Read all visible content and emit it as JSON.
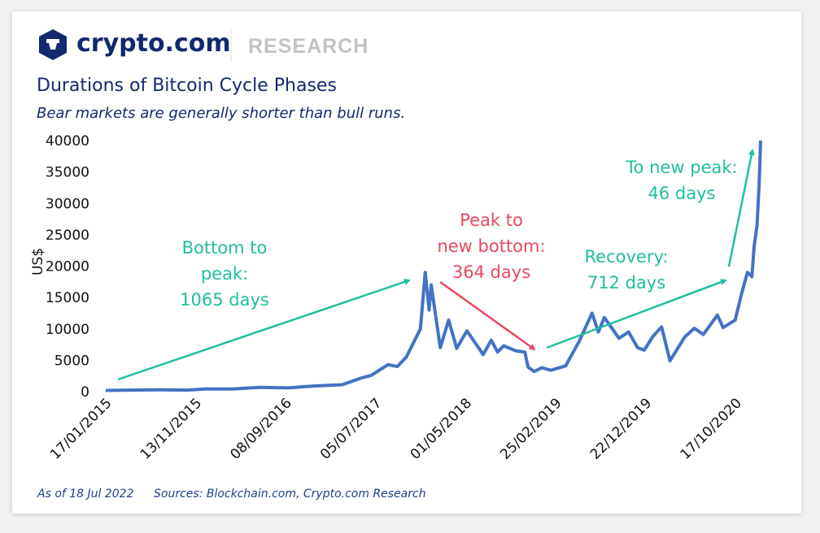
{
  "header": {
    "brand": "crypto.com",
    "section": "RESEARCH",
    "title": "Durations of Bitcoin Cycle Phases",
    "subtitle": "Bear markets are generally shorter than bull runs."
  },
  "footer": {
    "as_of": "As of 18 Jul 2022",
    "sources": "Sources: Blockchain.com, Crypto.com Research"
  },
  "colors": {
    "line": "#4472c4",
    "green": "#1fbe9f",
    "red": "#e8485e",
    "brand": "#13286e"
  },
  "chart_data": {
    "type": "line",
    "ylabel": "US$",
    "ylim": [
      0,
      40000
    ],
    "yticks": [
      0,
      5000,
      10000,
      15000,
      20000,
      25000,
      30000,
      35000,
      40000
    ],
    "xticks": [
      "17/01/2015",
      "13/11/2015",
      "08/09/2016",
      "05/07/2017",
      "01/05/2018",
      "25/02/2019",
      "22/12/2019",
      "17/10/2020"
    ],
    "grid": false,
    "series": [
      {
        "points": [
          [
            "2015-01-17",
            200
          ],
          [
            "2015-04-15",
            240
          ],
          [
            "2015-07-15",
            280
          ],
          [
            "2015-10-15",
            250
          ],
          [
            "2015-12-15",
            430
          ],
          [
            "2016-03-15",
            415
          ],
          [
            "2016-06-15",
            670
          ],
          [
            "2016-09-15",
            600
          ],
          [
            "2016-12-15",
            900
          ],
          [
            "2017-03-15",
            1100
          ],
          [
            "2017-05-20",
            2200
          ],
          [
            "2017-06-20",
            2600
          ],
          [
            "2017-08-15",
            4300
          ],
          [
            "2017-09-15",
            4000
          ],
          [
            "2017-10-15",
            5500
          ],
          [
            "2017-11-10",
            8000
          ],
          [
            "2017-12-01",
            10000
          ],
          [
            "2017-12-17",
            19000
          ],
          [
            "2017-12-30",
            13000
          ],
          [
            "2018-01-06",
            17000
          ],
          [
            "2018-02-05",
            7000
          ],
          [
            "2018-03-05",
            11400
          ],
          [
            "2018-04-01",
            6900
          ],
          [
            "2018-05-05",
            9700
          ],
          [
            "2018-06-28",
            5900
          ],
          [
            "2018-07-25",
            8200
          ],
          [
            "2018-08-15",
            6300
          ],
          [
            "2018-09-05",
            7300
          ],
          [
            "2018-10-15",
            6500
          ],
          [
            "2018-11-14",
            6300
          ],
          [
            "2018-11-25",
            3900
          ],
          [
            "2018-12-15",
            3200
          ],
          [
            "2019-01-10",
            3800
          ],
          [
            "2019-02-08",
            3400
          ],
          [
            "2019-03-30",
            4100
          ],
          [
            "2019-05-14",
            8000
          ],
          [
            "2019-06-26",
            12500
          ],
          [
            "2019-07-17",
            9500
          ],
          [
            "2019-08-06",
            11800
          ],
          [
            "2019-09-24",
            8500
          ],
          [
            "2019-10-26",
            9500
          ],
          [
            "2019-11-25",
            7000
          ],
          [
            "2019-12-17",
            6600
          ],
          [
            "2020-01-15",
            8800
          ],
          [
            "2020-02-13",
            10300
          ],
          [
            "2020-03-12",
            4900
          ],
          [
            "2020-04-30",
            8700
          ],
          [
            "2020-06-01",
            10100
          ],
          [
            "2020-07-01",
            9100
          ],
          [
            "2020-08-17",
            12200
          ],
          [
            "2020-09-05",
            10200
          ],
          [
            "2020-10-15",
            11400
          ],
          [
            "2020-11-05",
            15500
          ],
          [
            "2020-11-25",
            19000
          ],
          [
            "2020-12-10",
            18300
          ],
          [
            "2020-12-17",
            23000
          ],
          [
            "2020-12-27",
            26500
          ],
          [
            "2021-01-03",
            33000
          ],
          [
            "2021-01-08",
            40000
          ]
        ]
      }
    ],
    "annotations": [
      {
        "lines": [
          "Bottom to",
          "peak:",
          "1065 days"
        ],
        "color": "green"
      },
      {
        "lines": [
          "Peak to",
          "new bottom:",
          "364 days"
        ],
        "color": "red"
      },
      {
        "lines": [
          "Recovery:",
          "712 days"
        ],
        "color": "green"
      },
      {
        "lines": [
          "To new peak:",
          "46 days"
        ],
        "color": "green"
      }
    ]
  }
}
